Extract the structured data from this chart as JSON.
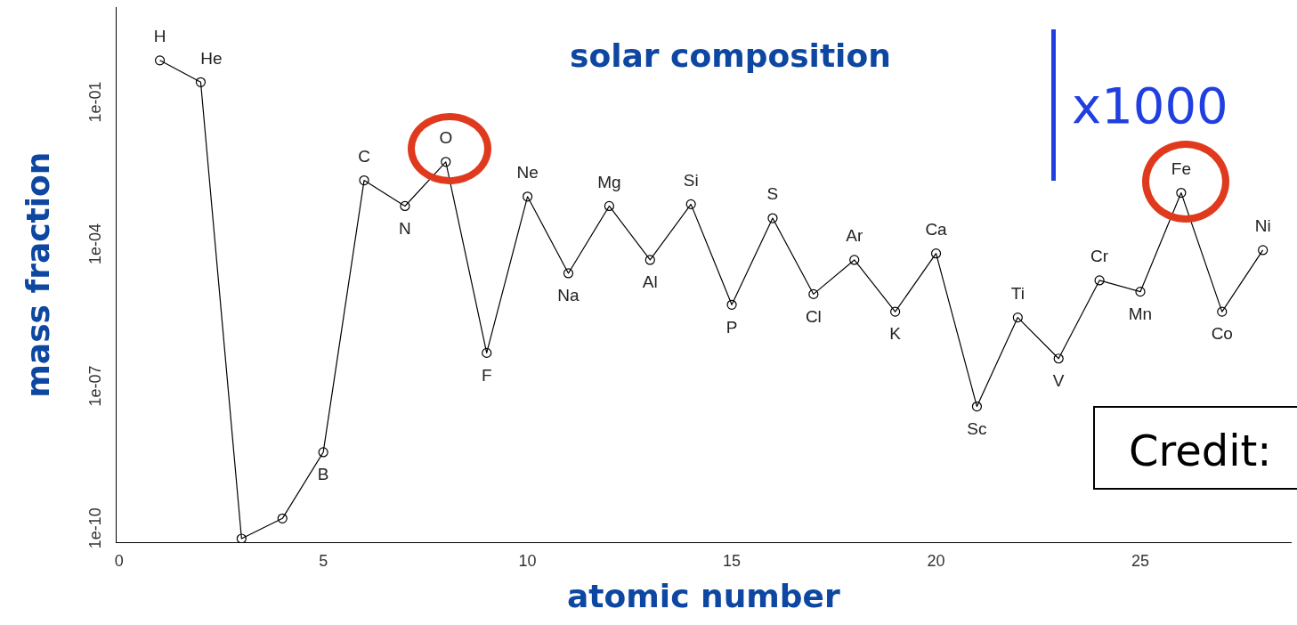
{
  "chart_data": {
    "type": "line",
    "title": "solar composition",
    "xlabel": "atomic number",
    "ylabel": "mass fraction",
    "x": [
      1,
      2,
      3,
      4,
      5,
      6,
      7,
      8,
      9,
      10,
      11,
      12,
      13,
      14,
      15,
      16,
      17,
      18,
      19,
      20,
      21,
      22,
      23,
      24,
      25,
      26,
      27,
      28
    ],
    "series": [
      {
        "color": "#000000",
        "values": [
          0.75,
          0.26,
          6e-11,
          1.6e-10,
          4e-09,
          0.0022,
          0.00063,
          0.0054,
          5e-07,
          0.001,
          2.4e-05,
          0.00063,
          4.6e-05,
          0.00069,
          5.2e-06,
          0.00035,
          8.7e-06,
          4.6e-05,
          3.7e-06,
          6.3e-05,
          3.7e-08,
          2.8e-06,
          3.8e-07,
          1.7e-05,
          9.8e-06,
          0.0012,
          3.7e-06,
          7.4e-05
        ]
      }
    ],
    "log": "y",
    "xlim": [
      -0.08,
      28.7
    ],
    "ylim": [
      5e-11,
      10
    ],
    "xticks": [
      0,
      5,
      10,
      15,
      20,
      25
    ],
    "yticks": [
      {
        "value": 1e-10,
        "label": "1e-10"
      },
      {
        "value": 1e-07,
        "label": "1e-07"
      },
      {
        "value": 0.0001,
        "label": "1e-04"
      },
      {
        "value": 0.1,
        "label": "1e-01"
      }
    ],
    "grid": false,
    "legend": false,
    "marker": "circle",
    "line_style": "solid",
    "annotations": [
      {
        "text": "H",
        "x": 1,
        "y": 0.75
      },
      {
        "text": "He",
        "x": 2,
        "y": 0.26
      },
      {
        "text": "B",
        "x": 5,
        "y": 4e-09
      },
      {
        "text": "C",
        "x": 6,
        "y": 0.0022
      },
      {
        "text": "N",
        "x": 7,
        "y": 0.00063
      },
      {
        "text": "O",
        "x": 8,
        "y": 0.0054
      },
      {
        "text": "F",
        "x": 9,
        "y": 5e-07
      },
      {
        "text": "Ne",
        "x": 10,
        "y": 0.001
      },
      {
        "text": "Na",
        "x": 11,
        "y": 2.4e-05
      },
      {
        "text": "Mg",
        "x": 12,
        "y": 0.00063
      },
      {
        "text": "Al",
        "x": 13,
        "y": 4.6e-05
      },
      {
        "text": "Si",
        "x": 14,
        "y": 0.00069
      },
      {
        "text": "P",
        "x": 15,
        "y": 5.2e-06
      },
      {
        "text": "S",
        "x": 16,
        "y": 0.00035
      },
      {
        "text": "Cl",
        "x": 17,
        "y": 8.7e-06
      },
      {
        "text": "Ar",
        "x": 18,
        "y": 4.6e-05
      },
      {
        "text": "K",
        "x": 19,
        "y": 3.7e-06
      },
      {
        "text": "Ca",
        "x": 20,
        "y": 6.3e-05
      },
      {
        "text": "Sc",
        "x": 21,
        "y": 3.7e-08
      },
      {
        "text": "Ti",
        "x": 22,
        "y": 2.8e-06
      },
      {
        "text": "V",
        "x": 23,
        "y": 3.8e-07
      },
      {
        "text": "Cr",
        "x": 24,
        "y": 1.7e-05
      },
      {
        "text": "Mn",
        "x": 25,
        "y": 9.8e-06
      },
      {
        "text": "Fe",
        "x": 26,
        "y": 0.0012
      },
      {
        "text": "Co",
        "x": 27,
        "y": 3.7e-06
      },
      {
        "text": "Ni",
        "x": 28,
        "y": 7.4e-05
      },
      "x1000",
      "Credit:"
    ]
  }
}
